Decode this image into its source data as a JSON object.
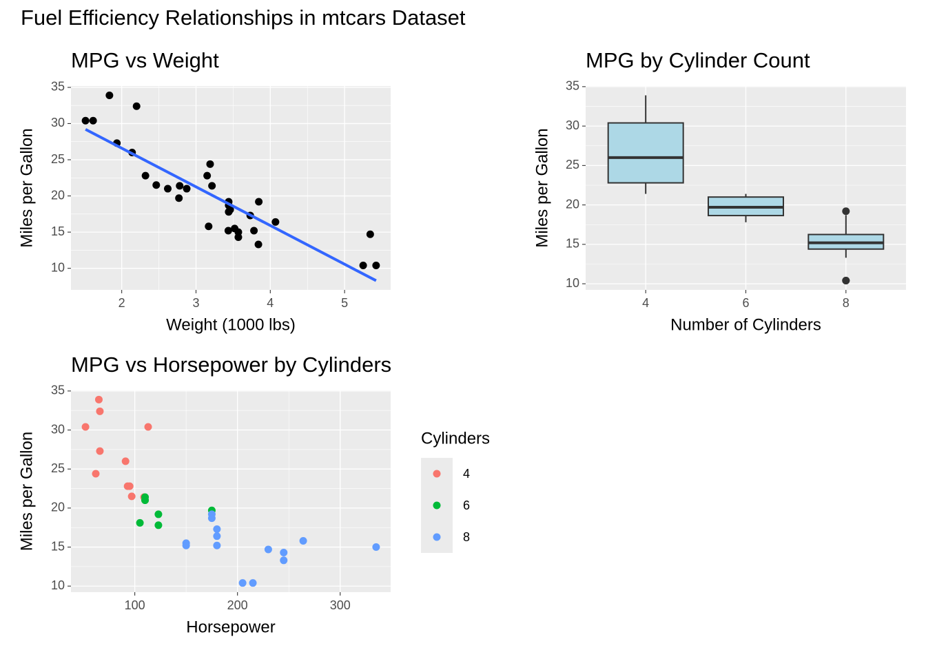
{
  "title": "Fuel Efficiency Relationships in mtcars Dataset",
  "chart_data": [
    {
      "type": "scatter",
      "title": "MPG vs Weight",
      "x_label": "Weight (1000 lbs)",
      "y_label": "Miles per Gallon",
      "x": [
        2.62,
        2.875,
        2.32,
        3.215,
        3.44,
        3.46,
        3.57,
        3.19,
        3.15,
        3.44,
        3.44,
        4.07,
        3.73,
        3.78,
        5.25,
        5.424,
        5.345,
        2.2,
        1.615,
        1.835,
        2.465,
        3.52,
        3.435,
        3.84,
        3.845,
        1.935,
        2.14,
        1.513,
        3.17,
        2.77,
        3.57,
        2.78
      ],
      "values": [
        21.0,
        21.0,
        22.8,
        21.4,
        18.7,
        18.1,
        14.3,
        24.4,
        22.8,
        19.2,
        17.8,
        16.4,
        17.3,
        15.2,
        10.4,
        10.4,
        14.7,
        32.4,
        30.4,
        33.9,
        21.5,
        15.5,
        15.2,
        13.3,
        19.2,
        27.3,
        26.0,
        30.4,
        15.8,
        19.7,
        15.0,
        21.4
      ],
      "color": "#000000",
      "fit": {
        "x": [
          1.513,
          5.424
        ],
        "values": [
          29.2,
          8.3
        ],
        "color": "#3366FF"
      },
      "xlim": [
        1.317,
        5.62
      ],
      "ylim": [
        7.02,
        35.18
      ],
      "xticks": [
        2,
        3,
        4,
        5
      ],
      "yticks": [
        10,
        15,
        20,
        25,
        30,
        35
      ],
      "grid": true
    },
    {
      "type": "box",
      "title": "MPG by Cylinder Count",
      "x_label": "Number of Cylinders",
      "y_label": "Miles per Gallon",
      "categories": [
        "4",
        "6",
        "8"
      ],
      "boxes": [
        {
          "min": 21.4,
          "q1": 22.8,
          "median": 26.0,
          "q3": 30.4,
          "max": 33.9,
          "outliers": []
        },
        {
          "min": 17.8,
          "q1": 18.65,
          "median": 19.7,
          "q3": 21.0,
          "max": 21.4,
          "outliers": []
        },
        {
          "min": 13.3,
          "q1": 14.4,
          "median": 15.2,
          "q3": 16.25,
          "max": 18.7,
          "outliers": [
            19.2,
            10.4,
            10.4
          ]
        }
      ],
      "color": "#ADD8E6",
      "ylim": [
        9.225,
        35.075
      ],
      "yticks": [
        10,
        15,
        20,
        25,
        30,
        35
      ],
      "grid": true
    },
    {
      "type": "scatter",
      "title": "MPG vs Horsepower by Cylinders",
      "x_label": "Horsepower",
      "y_label": "Miles per Gallon",
      "legend_title": "Cylinders",
      "legend": "right",
      "series": [
        {
          "name": "4",
          "color": "#F8766D",
          "x": [
            93,
            62,
            95,
            66,
            52,
            65,
            97,
            66,
            91,
            113,
            109
          ],
          "values": [
            22.8,
            24.4,
            22.8,
            32.4,
            30.4,
            33.9,
            21.5,
            27.3,
            26.0,
            30.4,
            21.4
          ]
        },
        {
          "name": "6",
          "color": "#00BA38",
          "x": [
            110,
            110,
            110,
            105,
            123,
            123,
            175
          ],
          "values": [
            21.0,
            21.0,
            21.4,
            18.1,
            19.2,
            17.8,
            19.7
          ]
        },
        {
          "name": "8",
          "color": "#619CFF",
          "x": [
            175,
            245,
            180,
            180,
            180,
            205,
            215,
            230,
            150,
            150,
            245,
            175,
            264,
            335
          ],
          "values": [
            18.7,
            14.3,
            16.4,
            17.3,
            15.2,
            10.4,
            10.4,
            14.7,
            15.5,
            15.2,
            13.3,
            19.2,
            15.8,
            15.0
          ]
        }
      ],
      "xlim": [
        37.85,
        349.15
      ],
      "ylim": [
        9.225,
        35.075
      ],
      "xticks": [
        100,
        200,
        300
      ],
      "yticks": [
        10,
        15,
        20,
        25,
        30,
        35
      ],
      "grid": true
    }
  ]
}
